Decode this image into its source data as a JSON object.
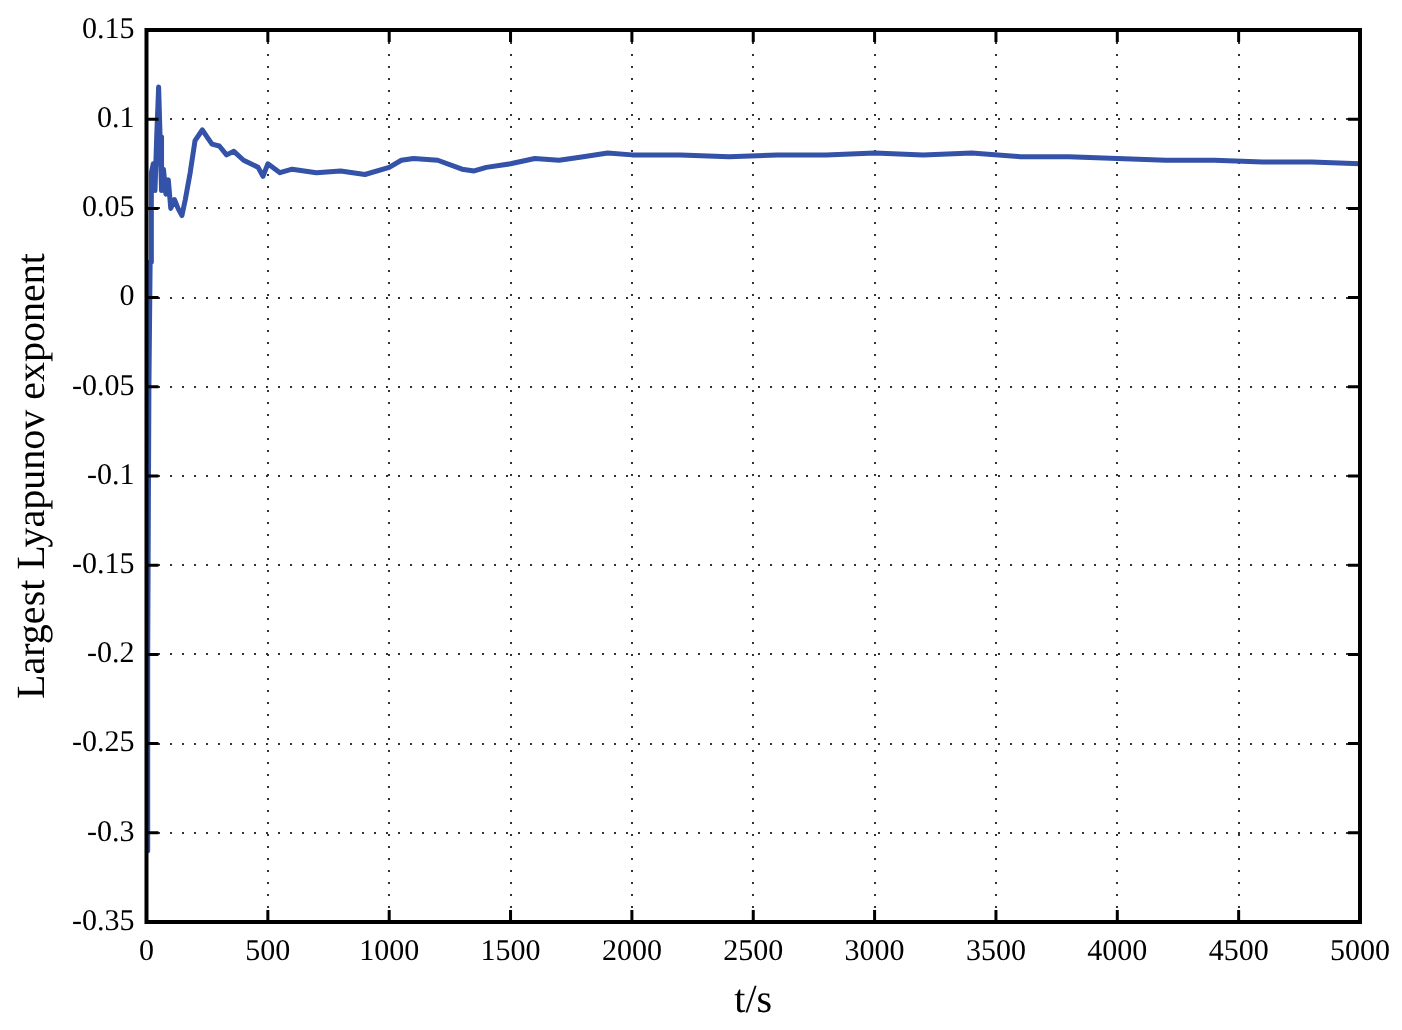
{
  "chart_data": {
    "type": "line",
    "xlabel": "t/s",
    "ylabel": "Largest Lyapunov exponent",
    "x": [
      0,
      5,
      10,
      15,
      20,
      28,
      35,
      42,
      50,
      56,
      62,
      70,
      80,
      90,
      100,
      115,
      130,
      146,
      160,
      180,
      200,
      220,
      230,
      250,
      270,
      300,
      330,
      360,
      400,
      430,
      460,
      480,
      500,
      550,
      600,
      700,
      800,
      900,
      1000,
      1050,
      1100,
      1200,
      1300,
      1350,
      1400,
      1500,
      1600,
      1700,
      1800,
      1900,
      2000,
      2200,
      2400,
      2600,
      2800,
      3000,
      3200,
      3400,
      3600,
      3800,
      4000,
      4200,
      4400,
      4600,
      4800,
      5000
    ],
    "series": [
      {
        "color": "#3352a8",
        "values": [
          -0.31,
          -0.2,
          -0.05,
          0.02,
          0.07,
          0.075,
          0.06,
          0.09,
          0.118,
          0.09,
          0.06,
          0.072,
          0.058,
          0.066,
          0.05,
          0.055,
          0.05,
          0.046,
          0.055,
          0.07,
          0.088,
          0.092,
          0.094,
          0.09,
          0.086,
          0.085,
          0.08,
          0.082,
          0.077,
          0.075,
          0.073,
          0.068,
          0.075,
          0.07,
          0.072,
          0.07,
          0.071,
          0.069,
          0.073,
          0.077,
          0.078,
          0.077,
          0.072,
          0.071,
          0.073,
          0.075,
          0.078,
          0.077,
          0.079,
          0.081,
          0.08,
          0.08,
          0.079,
          0.08,
          0.08,
          0.081,
          0.08,
          0.081,
          0.079,
          0.079,
          0.078,
          0.077,
          0.077,
          0.076,
          0.076,
          0.075
        ]
      }
    ],
    "xlim": [
      0,
      5000
    ],
    "xticks": [
      0,
      500,
      1000,
      1500,
      2000,
      2500,
      3000,
      3500,
      4000,
      4500,
      5000
    ],
    "ylim": [
      -0.35,
      0.15
    ],
    "yticks": [
      -0.35,
      -0.3,
      -0.25,
      -0.2,
      -0.15,
      -0.1,
      -0.05,
      0,
      0.05,
      0.1,
      0.15
    ],
    "grid": true,
    "line_style": "solid",
    "marker": "none"
  }
}
